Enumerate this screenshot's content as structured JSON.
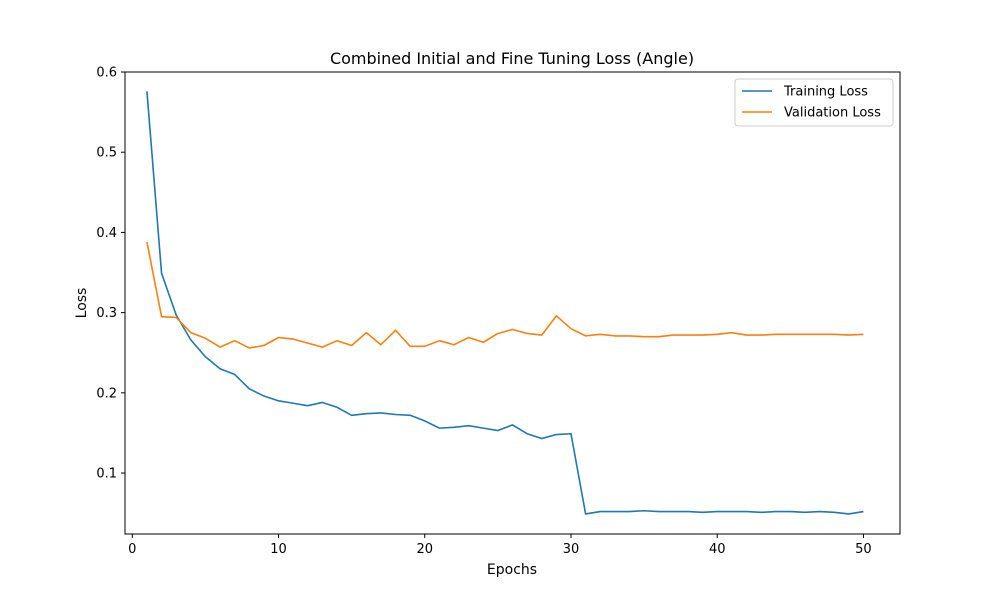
{
  "chart_data": {
    "type": "line",
    "title": "Combined Initial and Fine Tuning Loss (Angle)",
    "xlabel": "Epochs",
    "ylabel": "Loss",
    "xlim": [
      -0.5,
      52.5
    ],
    "ylim": [
      0.024,
      0.6
    ],
    "xticks": [
      0,
      10,
      20,
      30,
      40,
      50
    ],
    "yticks": [
      0.1,
      0.2,
      0.3,
      0.4,
      0.5,
      0.6
    ],
    "grid": false,
    "legend": "top-right",
    "x": [
      1,
      2,
      3,
      4,
      5,
      6,
      7,
      8,
      9,
      10,
      11,
      12,
      13,
      14,
      15,
      16,
      17,
      18,
      19,
      20,
      21,
      22,
      23,
      24,
      25,
      26,
      27,
      28,
      29,
      30,
      31,
      32,
      33,
      34,
      35,
      36,
      37,
      38,
      39,
      40,
      41,
      42,
      43,
      44,
      45,
      46,
      47,
      48,
      49,
      50
    ],
    "series": [
      {
        "name": "Training Loss",
        "color": "#1f77b4",
        "values": [
          0.576,
          0.349,
          0.297,
          0.266,
          0.245,
          0.23,
          0.223,
          0.205,
          0.196,
          0.19,
          0.187,
          0.184,
          0.188,
          0.182,
          0.172,
          0.174,
          0.175,
          0.173,
          0.172,
          0.165,
          0.156,
          0.157,
          0.159,
          0.156,
          0.153,
          0.16,
          0.149,
          0.143,
          0.148,
          0.149,
          0.049,
          0.052,
          0.052,
          0.052,
          0.053,
          0.052,
          0.052,
          0.052,
          0.051,
          0.052,
          0.052,
          0.052,
          0.051,
          0.052,
          0.052,
          0.051,
          0.052,
          0.051,
          0.049,
          0.052
        ]
      },
      {
        "name": "Validation Loss",
        "color": "#ff7f0e",
        "values": [
          0.388,
          0.295,
          0.294,
          0.275,
          0.268,
          0.257,
          0.265,
          0.256,
          0.259,
          0.269,
          0.267,
          0.262,
          0.257,
          0.265,
          0.259,
          0.275,
          0.26,
          0.278,
          0.258,
          0.258,
          0.265,
          0.26,
          0.269,
          0.263,
          0.274,
          0.279,
          0.274,
          0.272,
          0.296,
          0.28,
          0.271,
          0.273,
          0.271,
          0.271,
          0.27,
          0.27,
          0.272,
          0.272,
          0.272,
          0.273,
          0.275,
          0.272,
          0.272,
          0.273,
          0.273,
          0.273,
          0.273,
          0.273,
          0.272,
          0.273
        ]
      }
    ]
  }
}
